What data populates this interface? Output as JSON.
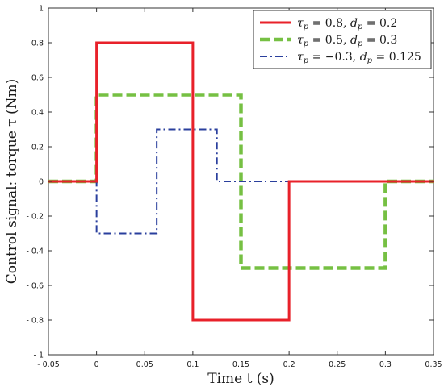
{
  "chart_data": {
    "type": "line",
    "title": "",
    "xlabel": "Time t (s)",
    "ylabel": "Control signal: torque τ (Nm)",
    "xlim": [
      -0.05,
      0.35
    ],
    "ylim": [
      -1,
      1
    ],
    "grid": false,
    "legend_position": "top-right",
    "xticks": [
      -0.05,
      0,
      0.05,
      0.1,
      0.15,
      0.2,
      0.25,
      0.3,
      0.35
    ],
    "xtick_labels": [
      "- 0.05",
      "0",
      "0.05",
      "0.1",
      "0.15",
      "0.2",
      "0.25",
      "0.3",
      "0.35"
    ],
    "yticks": [
      1,
      0.8,
      0.6,
      0.4,
      0.2,
      0,
      -0.2,
      -0.4,
      -0.6,
      -0.8,
      -1
    ],
    "ytick_labels": [
      "1",
      "0.8",
      "0.6",
      "0.4",
      "0.2",
      "0",
      "- 0.2",
      "- 0.4",
      "- 0.6",
      "- 0.8",
      "- 1"
    ],
    "series": [
      {
        "name": "τp = 0.8, dp = 0.2",
        "color": "#e8212a",
        "style": "solid",
        "x": [
          -0.05,
          0,
          0,
          0.1,
          0.1,
          0.2,
          0.2,
          0.35
        ],
        "y": [
          0,
          0,
          0.8,
          0.8,
          -0.8,
          -0.8,
          0,
          0
        ]
      },
      {
        "name": "τp = 0.5, dp = 0.3",
        "color": "#76c043",
        "style": "dashed",
        "x": [
          -0.05,
          0,
          0,
          0.15,
          0.15,
          0.3,
          0.3,
          0.35
        ],
        "y": [
          0,
          0,
          0.5,
          0.5,
          -0.5,
          -0.5,
          0,
          0
        ]
      },
      {
        "name": "τp = −0.3, dp = 0.125",
        "color": "#2a3f9d",
        "style": "dashdot",
        "x": [
          -0.05,
          0,
          0,
          0.0625,
          0.0625,
          0.125,
          0.125,
          0.35
        ],
        "y": [
          0,
          0,
          -0.3,
          -0.3,
          0.3,
          0.3,
          0,
          0
        ]
      }
    ]
  },
  "legend": {
    "entries": [
      {
        "tau_label": "τ",
        "tau_sub": "p",
        "tau_value": " = 0.8, ",
        "d_label": "d",
        "d_sub": "p",
        "d_value": " = 0.2"
      },
      {
        "tau_label": "τ",
        "tau_sub": "p",
        "tau_value": " = 0.5, ",
        "d_label": "d",
        "d_sub": "p",
        "d_value": " = 0.3"
      },
      {
        "tau_label": "τ",
        "tau_sub": "p",
        "tau_value": " = −0.3, ",
        "d_label": "d",
        "d_sub": "p",
        "d_value": " = 0.125"
      }
    ]
  }
}
